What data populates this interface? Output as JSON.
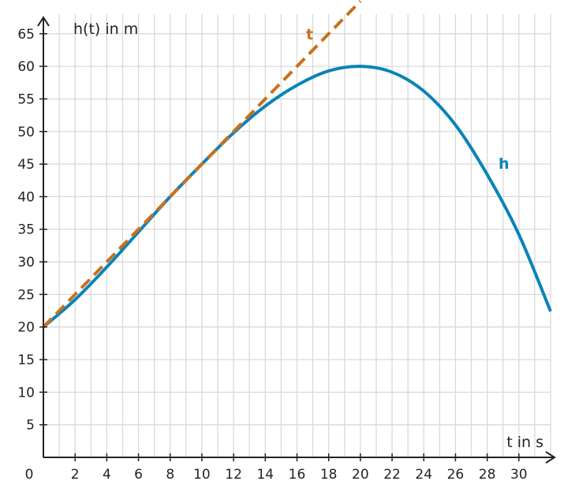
{
  "chart_data": {
    "type": "line",
    "title": "",
    "xlabel": "t in s",
    "ylabel": "h(t) in m",
    "xlim": [
      0,
      32
    ],
    "ylim": [
      0,
      68
    ],
    "grid": true,
    "x_ticks": [
      2,
      4,
      6,
      8,
      10,
      12,
      14,
      16,
      18,
      20,
      22,
      24,
      26,
      28,
      30
    ],
    "y_ticks": [
      5,
      10,
      15,
      20,
      25,
      30,
      35,
      40,
      45,
      50,
      55,
      60,
      65
    ],
    "origin_label": "0",
    "series": [
      {
        "name": "h",
        "color": "#0a84b8",
        "style": "solid",
        "x": [
          0,
          2,
          4,
          6,
          8,
          10,
          12,
          14,
          16,
          18,
          20,
          22,
          24,
          26,
          28,
          30,
          32
        ],
        "y": [
          20.0,
          24.2,
          29.2,
          34.6,
          40.0,
          45.0,
          49.8,
          53.9,
          57.1,
          59.3,
          60.0,
          59.1,
          56.2,
          51.0,
          43.4,
          34.2,
          22.4
        ]
      },
      {
        "name": "t",
        "color": "#c8711a",
        "style": "dashed",
        "x": [
          0,
          20
        ],
        "y": [
          20,
          70
        ]
      }
    ]
  }
}
